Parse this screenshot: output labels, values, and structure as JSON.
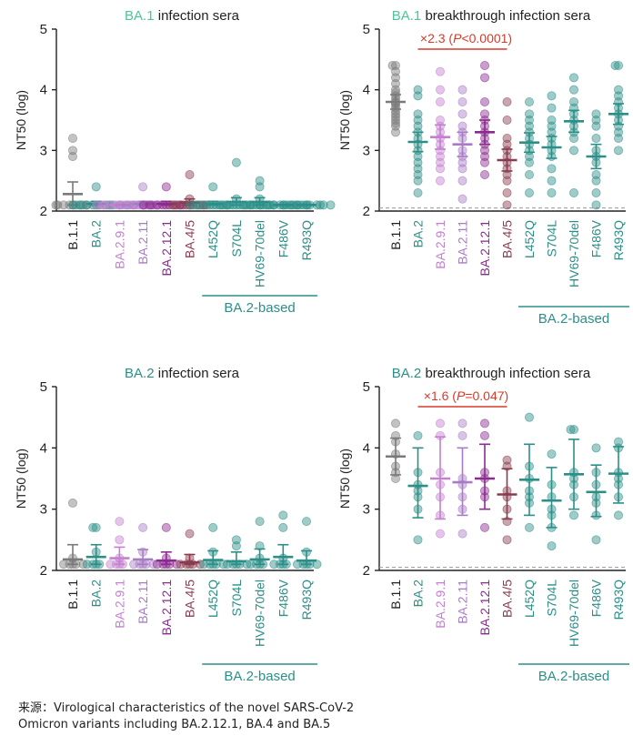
{
  "colors": {
    "b11": "#7a7a7a",
    "teal": "#2b8f88",
    "ba2": "#2b8f88",
    "ba291": "#c57fd0",
    "ba211": "#a87cc4",
    "ba2121": "#8b2b8f",
    "ba45": "#8a3b4e",
    "red": "#d83a2a",
    "title_accent_ba1": "#4fc49a",
    "title_accent_ba2": "#2b8f88"
  },
  "chart_data": [
    {
      "type": "scatter",
      "panel": "top-left",
      "title": {
        "accent": "BA.1",
        "rest": " infection sera"
      },
      "ylabel": "NT50 (log)",
      "ylim": [
        2,
        5
      ],
      "yticks": [
        2,
        3,
        4,
        5
      ],
      "categories": [
        "B.1.1",
        "BA.2",
        "BA.2.9.1",
        "BA.2.11",
        "BA.2.12.1",
        "BA.4/5",
        "L452Q",
        "S704L",
        "HV69-70del",
        "F486V",
        "R493Q"
      ],
      "category_colors": [
        "b11",
        "ba2",
        "ba291",
        "ba211",
        "ba2121",
        "ba45",
        "teal",
        "teal",
        "teal",
        "teal",
        "teal"
      ],
      "group_label": "BA.2-based",
      "group_range": [
        6,
        10
      ],
      "detection_limit": null,
      "points": [
        [
          3.2,
          3.0,
          2.9,
          2.1,
          2.1,
          2.1,
          2.1,
          2.1,
          2.1,
          2.1,
          2.1
        ],
        [
          2.4,
          2.1,
          2.1,
          2.1,
          2.1,
          2.1,
          2.1,
          2.1,
          2.1,
          2.1,
          2.1
        ],
        [
          2.1,
          2.1,
          2.1,
          2.1,
          2.1,
          2.1,
          2.1,
          2.1,
          2.1,
          2.1,
          2.1
        ],
        [
          2.4,
          2.1,
          2.1,
          2.1,
          2.1,
          2.1,
          2.1,
          2.1,
          2.1,
          2.1,
          2.1
        ],
        [
          2.4,
          2.1,
          2.1,
          2.1,
          2.1,
          2.1,
          2.1,
          2.1,
          2.1,
          2.1,
          2.1
        ],
        [
          2.6,
          2.2,
          2.1,
          2.1,
          2.1,
          2.1,
          2.1,
          2.1,
          2.1,
          2.1,
          2.1
        ],
        [
          2.4,
          2.1,
          2.1,
          2.1,
          2.1,
          2.1,
          2.1,
          2.1,
          2.1,
          2.1,
          2.1
        ],
        [
          2.8,
          2.2,
          2.1,
          2.1,
          2.1,
          2.1,
          2.1,
          2.1,
          2.1,
          2.1,
          2.1
        ],
        [
          2.5,
          2.4,
          2.2,
          2.1,
          2.1,
          2.1,
          2.1,
          2.1,
          2.1,
          2.1,
          2.1
        ],
        [
          2.1,
          2.1,
          2.1,
          2.1,
          2.1,
          2.1,
          2.1,
          2.1,
          2.1,
          2.1,
          2.1
        ],
        [
          2.1,
          2.1,
          2.1,
          2.1,
          2.1,
          2.1,
          2.1,
          2.1,
          2.1,
          2.1,
          2.1
        ]
      ],
      "stats": [
        {
          "mean": 2.28,
          "lo": 2.1,
          "hi": 2.48
        },
        {
          "mean": 2.12,
          "lo": 2.1,
          "hi": 2.16
        },
        {
          "mean": 2.1,
          "lo": 2.1,
          "hi": 2.1
        },
        {
          "mean": 2.12,
          "lo": 2.1,
          "hi": 2.16
        },
        {
          "mean": 2.12,
          "lo": 2.1,
          "hi": 2.16
        },
        {
          "mean": 2.14,
          "lo": 2.1,
          "hi": 2.2
        },
        {
          "mean": 2.12,
          "lo": 2.1,
          "hi": 2.16
        },
        {
          "mean": 2.15,
          "lo": 2.1,
          "hi": 2.22
        },
        {
          "mean": 2.15,
          "lo": 2.1,
          "hi": 2.22
        },
        {
          "mean": 2.1,
          "lo": 2.1,
          "hi": 2.1
        },
        {
          "mean": 2.1,
          "lo": 2.1,
          "hi": 2.1
        }
      ],
      "annotation": null
    },
    {
      "type": "scatter",
      "panel": "top-right",
      "title": {
        "accent": "BA.1",
        "rest": " breakthrough infection sera"
      },
      "ylabel": "NT50 (log)",
      "ylim": [
        2,
        5
      ],
      "yticks": [
        2,
        3,
        4,
        5
      ],
      "categories": [
        "B.1.1",
        "BA.2",
        "BA.2.9.1",
        "BA.2.11",
        "BA.2.12.1",
        "BA.4/5",
        "L452Q",
        "S704L",
        "HV69-70del",
        "F486V",
        "R493Q"
      ],
      "category_colors": [
        "b11",
        "ba2",
        "ba291",
        "ba211",
        "ba2121",
        "ba45",
        "teal",
        "teal",
        "teal",
        "teal",
        "teal"
      ],
      "group_label": "BA.2-based",
      "group_range": [
        6,
        10
      ],
      "detection_limit": 2.05,
      "points": [
        [
          4.4,
          4.4,
          4.3,
          4.2,
          4.1,
          4.0,
          3.95,
          3.9,
          3.85,
          3.8,
          3.78,
          3.75,
          3.7,
          3.65,
          3.6,
          3.55,
          3.5,
          3.45,
          3.4,
          3.3
        ],
        [
          4.0,
          3.9,
          3.6,
          3.5,
          3.4,
          3.3,
          3.2,
          3.1,
          3.0,
          2.9,
          2.8,
          2.7,
          2.6,
          2.5,
          2.3
        ],
        [
          4.3,
          4.0,
          3.8,
          3.5,
          3.4,
          3.3,
          3.2,
          3.1,
          3.0,
          2.9,
          2.8,
          2.7,
          2.5
        ],
        [
          4.0,
          3.8,
          3.6,
          3.4,
          3.3,
          3.2,
          3.0,
          2.9,
          2.8,
          2.7,
          2.5,
          2.2
        ],
        [
          4.4,
          4.2,
          3.8,
          3.6,
          3.5,
          3.4,
          3.3,
          3.2,
          3.1,
          3.0,
          2.9,
          2.8,
          2.6
        ],
        [
          3.8,
          3.5,
          3.2,
          3.1,
          3.0,
          2.9,
          2.8,
          2.7,
          2.6,
          2.5,
          2.3,
          2.1
        ],
        [
          3.8,
          3.6,
          3.5,
          3.4,
          3.3,
          3.2,
          3.1,
          3.0,
          2.9,
          2.8,
          2.6,
          2.3
        ],
        [
          3.9,
          3.7,
          3.5,
          3.4,
          3.3,
          3.2,
          3.1,
          3.0,
          2.9,
          2.7,
          2.5,
          2.3
        ],
        [
          4.2,
          4.0,
          3.8,
          3.7,
          3.6,
          3.5,
          3.4,
          3.3,
          3.2,
          3.0,
          2.3
        ],
        [
          3.6,
          3.5,
          3.4,
          3.2,
          3.0,
          2.9,
          2.8,
          2.6,
          2.5,
          2.3,
          2.1
        ],
        [
          4.4,
          4.4,
          4.0,
          3.9,
          3.8,
          3.7,
          3.6,
          3.5,
          3.4,
          3.3,
          3.2,
          3.0
        ]
      ],
      "stats": [
        {
          "mean": 3.8,
          "lo": 3.68,
          "hi": 3.92
        },
        {
          "mean": 3.14,
          "lo": 2.98,
          "hi": 3.3
        },
        {
          "mean": 3.22,
          "lo": 3.02,
          "hi": 3.42
        },
        {
          "mean": 3.1,
          "lo": 2.9,
          "hi": 3.3
        },
        {
          "mean": 3.3,
          "lo": 3.1,
          "hi": 3.5
        },
        {
          "mean": 2.84,
          "lo": 2.66,
          "hi": 3.02
        },
        {
          "mean": 3.13,
          "lo": 2.97,
          "hi": 3.29
        },
        {
          "mean": 3.05,
          "lo": 2.87,
          "hi": 3.23
        },
        {
          "mean": 3.48,
          "lo": 3.3,
          "hi": 3.66
        },
        {
          "mean": 2.9,
          "lo": 2.7,
          "hi": 3.1
        },
        {
          "mean": 3.6,
          "lo": 3.43,
          "hi": 3.77
        }
      ],
      "annotation": {
        "prefix": "×2.3 (",
        "p_symbol": "P",
        "suffix": "<0.0001)",
        "from": 1,
        "to": 5
      }
    },
    {
      "type": "scatter",
      "panel": "bottom-left",
      "title": {
        "accent": "BA.2",
        "rest": " infection sera"
      },
      "ylabel": "NT50 (log)",
      "ylim": [
        2,
        5
      ],
      "yticks": [
        2,
        3,
        4,
        5
      ],
      "categories": [
        "B.1.1",
        "BA.2",
        "BA.2.9.1",
        "BA.2.11",
        "BA.2.12.1",
        "BA.4/5",
        "L452Q",
        "S704L",
        "HV69-70del",
        "F486V",
        "R493Q"
      ],
      "category_colors": [
        "b11",
        "ba2",
        "ba291",
        "ba211",
        "ba2121",
        "ba45",
        "teal",
        "teal",
        "teal",
        "teal",
        "teal"
      ],
      "group_label": "BA.2-based",
      "group_range": [
        6,
        10
      ],
      "detection_limit": null,
      "points": [
        [
          3.1,
          2.2,
          2.1,
          2.1,
          2.1,
          2.1,
          2.1
        ],
        [
          2.7,
          2.7,
          2.3,
          2.1,
          2.1,
          2.1,
          2.1
        ],
        [
          2.8,
          2.5,
          2.2,
          2.1,
          2.1,
          2.1,
          2.1
        ],
        [
          2.7,
          2.3,
          2.1,
          2.1,
          2.1,
          2.1,
          2.1
        ],
        [
          2.7,
          2.2,
          2.1,
          2.1,
          2.1,
          2.1,
          2.1
        ],
        [
          2.6,
          2.2,
          2.1,
          2.1,
          2.1,
          2.1,
          2.1
        ],
        [
          2.7,
          2.3,
          2.1,
          2.1,
          2.1,
          2.1,
          2.1
        ],
        [
          2.5,
          2.4,
          2.1,
          2.1,
          2.1,
          2.1,
          2.1
        ],
        [
          2.8,
          2.4,
          2.2,
          2.1,
          2.1,
          2.1,
          2.1
        ],
        [
          2.9,
          2.7,
          2.2,
          2.1,
          2.1,
          2.1,
          2.1
        ],
        [
          2.8,
          2.3,
          2.1,
          2.1,
          2.1,
          2.1,
          2.1
        ]
      ],
      "stats": [
        {
          "mean": 2.18,
          "lo": 2.1,
          "hi": 2.42
        },
        {
          "mean": 2.22,
          "lo": 2.1,
          "hi": 2.42
        },
        {
          "mean": 2.2,
          "lo": 2.1,
          "hi": 2.38
        },
        {
          "mean": 2.18,
          "lo": 2.1,
          "hi": 2.34
        },
        {
          "mean": 2.16,
          "lo": 2.1,
          "hi": 2.3
        },
        {
          "mean": 2.13,
          "lo": 2.1,
          "hi": 2.26
        },
        {
          "mean": 2.17,
          "lo": 2.1,
          "hi": 2.32
        },
        {
          "mean": 2.15,
          "lo": 2.1,
          "hi": 2.3
        },
        {
          "mean": 2.18,
          "lo": 2.1,
          "hi": 2.35
        },
        {
          "mean": 2.22,
          "lo": 2.1,
          "hi": 2.42
        },
        {
          "mean": 2.16,
          "lo": 2.1,
          "hi": 2.32
        }
      ],
      "annotation": null
    },
    {
      "type": "scatter",
      "panel": "bottom-right",
      "title": {
        "accent": "BA.2",
        "rest": " breakthrough infection sera"
      },
      "ylabel": "NT50 (log)",
      "ylim": [
        2,
        5
      ],
      "yticks": [
        2,
        3,
        4,
        5
      ],
      "categories": [
        "B.1.1",
        "BA.2",
        "BA.2.9.1",
        "BA.2.11",
        "BA.2.12.1",
        "BA.4/5",
        "L452Q",
        "S704L",
        "HV69-70del",
        "F486V",
        "R493Q"
      ],
      "category_colors": [
        "b11",
        "ba2",
        "ba291",
        "ba211",
        "ba2121",
        "ba45",
        "teal",
        "teal",
        "teal",
        "teal",
        "teal"
      ],
      "group_label": "BA.2-based",
      "group_range": [
        6,
        10
      ],
      "detection_limit": 2.05,
      "points": [
        [
          4.4,
          4.2,
          4.1,
          3.9,
          3.7,
          3.6,
          3.5
        ],
        [
          4.2,
          3.6,
          3.4,
          3.3,
          3.2,
          3.0,
          2.5
        ],
        [
          4.4,
          4.2,
          3.6,
          3.4,
          3.2,
          2.9,
          2.6
        ],
        [
          4.4,
          4.2,
          3.5,
          3.4,
          3.2,
          3.0,
          2.6
        ],
        [
          4.4,
          4.2,
          3.6,
          3.5,
          3.3,
          3.2,
          2.7
        ],
        [
          3.8,
          3.7,
          3.3,
          3.2,
          3.0,
          2.8,
          2.5
        ],
        [
          4.5,
          3.7,
          3.5,
          3.3,
          3.2,
          3.1,
          2.7
        ],
        [
          3.9,
          3.4,
          3.2,
          3.0,
          2.9,
          2.7,
          2.4
        ],
        [
          4.3,
          4.3,
          3.6,
          3.5,
          3.4,
          3.2,
          2.9
        ],
        [
          4.0,
          3.6,
          3.4,
          3.2,
          3.1,
          2.9,
          2.5
        ],
        [
          4.1,
          4.0,
          3.6,
          3.5,
          3.4,
          3.2,
          2.9
        ]
      ],
      "stats": [
        {
          "mean": 3.86,
          "lo": 3.56,
          "hi": 4.16
        },
        {
          "mean": 3.38,
          "lo": 2.86,
          "hi": 4.0
        },
        {
          "mean": 3.5,
          "lo": 2.84,
          "hi": 4.18
        },
        {
          "mean": 3.44,
          "lo": 2.9,
          "hi": 4.0
        },
        {
          "mean": 3.5,
          "lo": 3.0,
          "hi": 4.06
        },
        {
          "mean": 3.24,
          "lo": 2.84,
          "hi": 3.66
        },
        {
          "mean": 3.48,
          "lo": 2.9,
          "hi": 4.06
        },
        {
          "mean": 3.14,
          "lo": 2.7,
          "hi": 3.68
        },
        {
          "mean": 3.57,
          "lo": 3.0,
          "hi": 4.14
        },
        {
          "mean": 3.28,
          "lo": 2.88,
          "hi": 3.72
        },
        {
          "mean": 3.58,
          "lo": 3.1,
          "hi": 4.02
        }
      ],
      "annotation": {
        "prefix": "×1.6 (",
        "p_symbol": "P",
        "suffix": "=0.047)",
        "from": 1,
        "to": 5
      }
    }
  ],
  "caption": {
    "line1": "来源：Virological characteristics of the novel SARS-CoV-2",
    "line2": "Omicron variants including BA.2.12.1, BA.4 and BA.5"
  }
}
